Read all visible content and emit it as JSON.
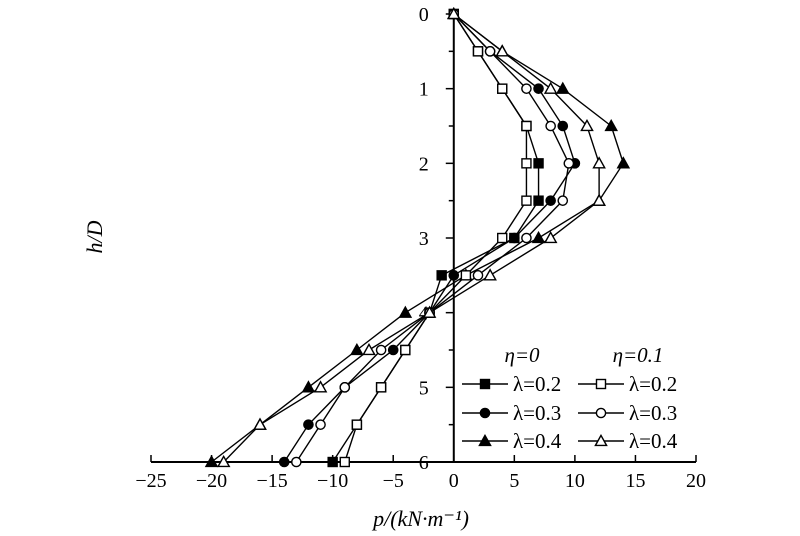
{
  "chart_data": {
    "type": "line",
    "xlabel": "p/(kN·m⁻¹)",
    "ylabel": "h/D",
    "xlim": [
      -25,
      20
    ],
    "ylim": [
      0,
      6
    ],
    "y_inverted": true,
    "x_axis_position": "top",
    "xticks": [
      -25,
      -20,
      -15,
      -10,
      -5,
      0,
      5,
      10,
      15,
      20
    ],
    "xtick_labels": [
      "−25",
      "−20",
      "−15",
      "−10",
      "−5",
      "0",
      "5",
      "10",
      "15",
      "20"
    ],
    "yticks": [
      0,
      1,
      2,
      3,
      4,
      5,
      6
    ],
    "ytick_labels": [
      "0",
      "1",
      "2",
      "3",
      "4",
      "5",
      "6"
    ],
    "grid": false,
    "legend": {
      "placement": "bottom-right",
      "columns": [
        {
          "header": "η=0"
        },
        {
          "header": "η=0.1"
        }
      ]
    },
    "series": [
      {
        "name": "λ=0.2",
        "group": "η=0",
        "marker": "square",
        "filled": true,
        "points": [
          [
            0,
            0
          ],
          [
            2,
            0.5
          ],
          [
            4,
            1
          ],
          [
            6,
            1.5
          ],
          [
            7,
            2
          ],
          [
            7,
            2.5
          ],
          [
            5,
            3
          ],
          [
            -1,
            3.5
          ],
          [
            -2,
            4
          ],
          [
            -4,
            4.5
          ],
          [
            -6,
            5
          ],
          [
            -8,
            5.5
          ],
          [
            -10,
            6
          ]
        ]
      },
      {
        "name": "λ=0.3",
        "group": "η=0",
        "marker": "circle",
        "filled": true,
        "points": [
          [
            0,
            0
          ],
          [
            3,
            0.5
          ],
          [
            7,
            1
          ],
          [
            9,
            1.5
          ],
          [
            10,
            2
          ],
          [
            8,
            2.5
          ],
          [
            5,
            3
          ],
          [
            0,
            3.5
          ],
          [
            -2,
            4
          ],
          [
            -5,
            4.5
          ],
          [
            -9,
            5
          ],
          [
            -12,
            5.5
          ],
          [
            -14,
            6
          ]
        ]
      },
      {
        "name": "λ=0.4",
        "group": "η=0",
        "marker": "triangle",
        "filled": true,
        "points": [
          [
            0,
            0
          ],
          [
            4,
            0.5
          ],
          [
            9,
            1
          ],
          [
            13,
            1.5
          ],
          [
            14,
            2
          ],
          [
            12,
            2.5
          ],
          [
            7,
            3
          ],
          [
            1,
            3.5
          ],
          [
            -4,
            4
          ],
          [
            -8,
            4.5
          ],
          [
            -12,
            5
          ],
          [
            -16,
            5.5
          ],
          [
            -20,
            6
          ]
        ]
      },
      {
        "name": "λ=0.2",
        "group": "η=0.1",
        "marker": "square",
        "filled": false,
        "points": [
          [
            0,
            0
          ],
          [
            2,
            0.5
          ],
          [
            4,
            1
          ],
          [
            6,
            1.5
          ],
          [
            6,
            2
          ],
          [
            6,
            2.5
          ],
          [
            4,
            3
          ],
          [
            1,
            3.5
          ],
          [
            -2,
            4
          ],
          [
            -4,
            4.5
          ],
          [
            -6,
            5
          ],
          [
            -8,
            5.5
          ],
          [
            -9,
            6
          ]
        ]
      },
      {
        "name": "λ=0.3",
        "group": "η=0.1",
        "marker": "circle",
        "filled": false,
        "points": [
          [
            0,
            0
          ],
          [
            3,
            0.5
          ],
          [
            6,
            1
          ],
          [
            8,
            1.5
          ],
          [
            9.5,
            2
          ],
          [
            9,
            2.5
          ],
          [
            6,
            3
          ],
          [
            2,
            3.5
          ],
          [
            -2,
            4
          ],
          [
            -6,
            4.5
          ],
          [
            -9,
            5
          ],
          [
            -11,
            5.5
          ],
          [
            -13,
            6
          ]
        ]
      },
      {
        "name": "λ=0.4",
        "group": "η=0.1",
        "marker": "triangle",
        "filled": false,
        "points": [
          [
            0,
            0
          ],
          [
            4,
            0.5
          ],
          [
            8,
            1
          ],
          [
            11,
            1.5
          ],
          [
            12,
            2
          ],
          [
            12,
            2.5
          ],
          [
            8,
            3
          ],
          [
            3,
            3.5
          ],
          [
            -2,
            4
          ],
          [
            -7,
            4.5
          ],
          [
            -11,
            5
          ],
          [
            -16,
            5.5
          ],
          [
            -19,
            6
          ]
        ]
      }
    ]
  }
}
